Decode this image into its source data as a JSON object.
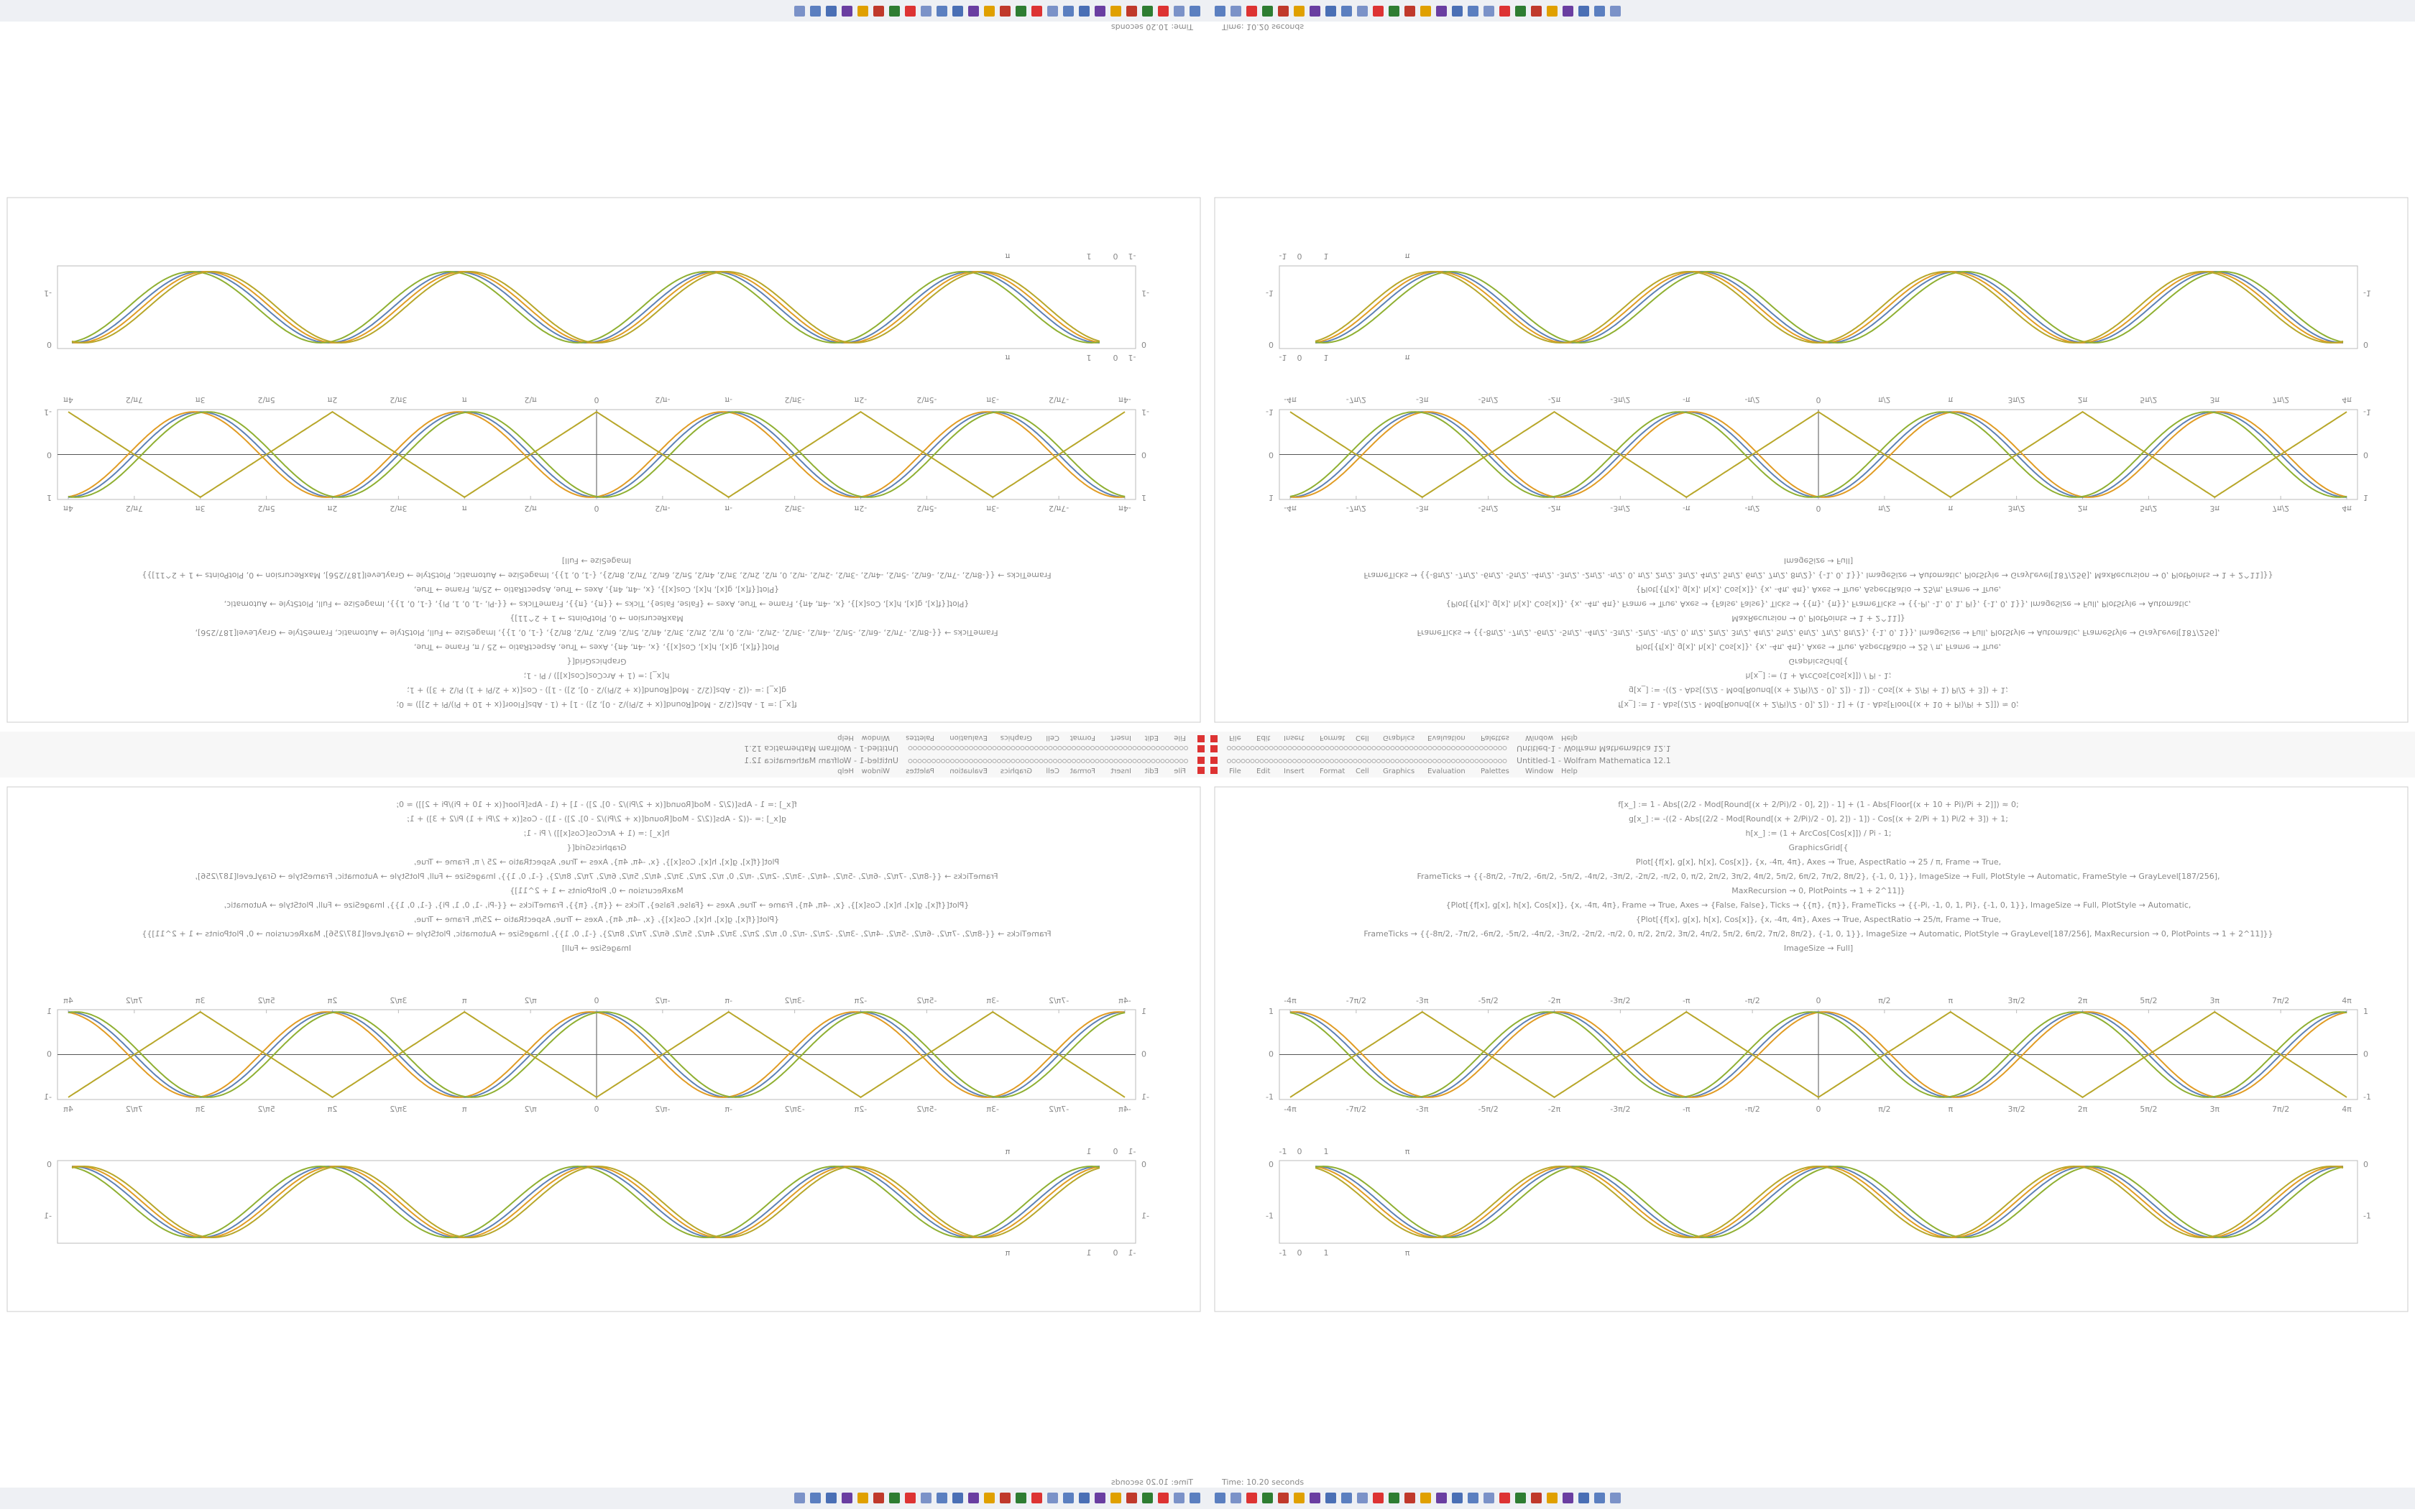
{
  "window_title": "Untitled-1 - Wolfram Mathematica 12.1",
  "status": "Time: 10.20 seconds",
  "menu": [
    "File",
    "Edit",
    "Insert",
    "Format",
    "Cell",
    "Graphics",
    "Evaluation",
    "Palettes",
    "Window",
    "Help"
  ],
  "code": [
    "f[x_] := 1 - Abs[(2/2 - Mod[Round[(x + 2/Pi)/2 - 0], 2]) - 1] + (1 - Abs[Floor[(x + 10 + Pi)/Pi + 2]]) ≈ 0;",
    "g[x_] := -((2 - Abs[(2/2 - Mod[Round[(x + 2/Pi)/2 - 0], 2]) - 1]) - Cos[(x + 2/Pi + 1) Pi/2 + 3]) + 1;",
    "h[x_] := (1 + ArcCos[Cos[x]]) / Pi - 1;",
    "GraphicsGrid[{",
    "Plot[{f[x], g[x], h[x], Cos[x]}, {x, -4π, 4π}, Axes → True, AspectRatio → 25 / π, Frame → True,",
    "FrameTicks → {{-8π/2, -7π/2, -6π/2, -5π/2, -4π/2, -3π/2, -2π/2, -π/2, 0, π/2, 2π/2, 3π/2, 4π/2, 5π/2, 6π/2, 7π/2, 8π/2}, {-1, 0, 1}}, ImageSize → Full, PlotStyle → Automatic, FrameStyle → GrayLevel[187/256],",
    "MaxRecursion → 0, PlotPoints → 1 + 2^11]}",
    "{Plot[{f[x], g[x], h[x], Cos[x]}, {x, -4π, 4π}, Frame → True, Axes → {False, False}, Ticks → {{π}, {π}}, FrameTicks → {{-Pi, -1, 0, 1, Pi}, {-1, 0, 1}}, ImageSize → Full, PlotStyle → Automatic,",
    "{Plot[{f[x], g[x], h[x], Cos[x]}, {x, -4π, 4π}, Axes → True, AspectRatio → 25/π, Frame → True,",
    "FrameTicks → {{-8π/2, -7π/2, -6π/2, -5π/2, -4π/2, -3π/2, -2π/2, -π/2, 0, π/2, 2π/2, 3π/2, 4π/2, 5π/2, 6π/2, 7π/2, 8π/2}, {-1, 0, 1}}, ImageSize → Automatic, PlotStyle → GrayLevel[187/256], MaxRecursion → 0, PlotPoints → 1 + 2^11]}}",
    "ImageSize → Full]"
  ],
  "curve_colors": [
    "#5e81b5",
    "#e19c24",
    "#8fb032",
    "#b8a72a"
  ],
  "wave_ticks": [
    "-4π",
    "-7π/2",
    "-3π",
    "-5π/2",
    "-2π",
    "-3π/2",
    "-π",
    "-π/2",
    "0",
    "π/2",
    "π",
    "3π/2",
    "2π",
    "5π/2",
    "3π",
    "7π/2",
    "4π"
  ],
  "wave_yticks": [
    "-1",
    "0",
    "1"
  ],
  "band_ticks": [
    "-1",
    "0",
    "1",
    "π"
  ],
  "band_yticks": [
    "0",
    "-1"
  ]
}
